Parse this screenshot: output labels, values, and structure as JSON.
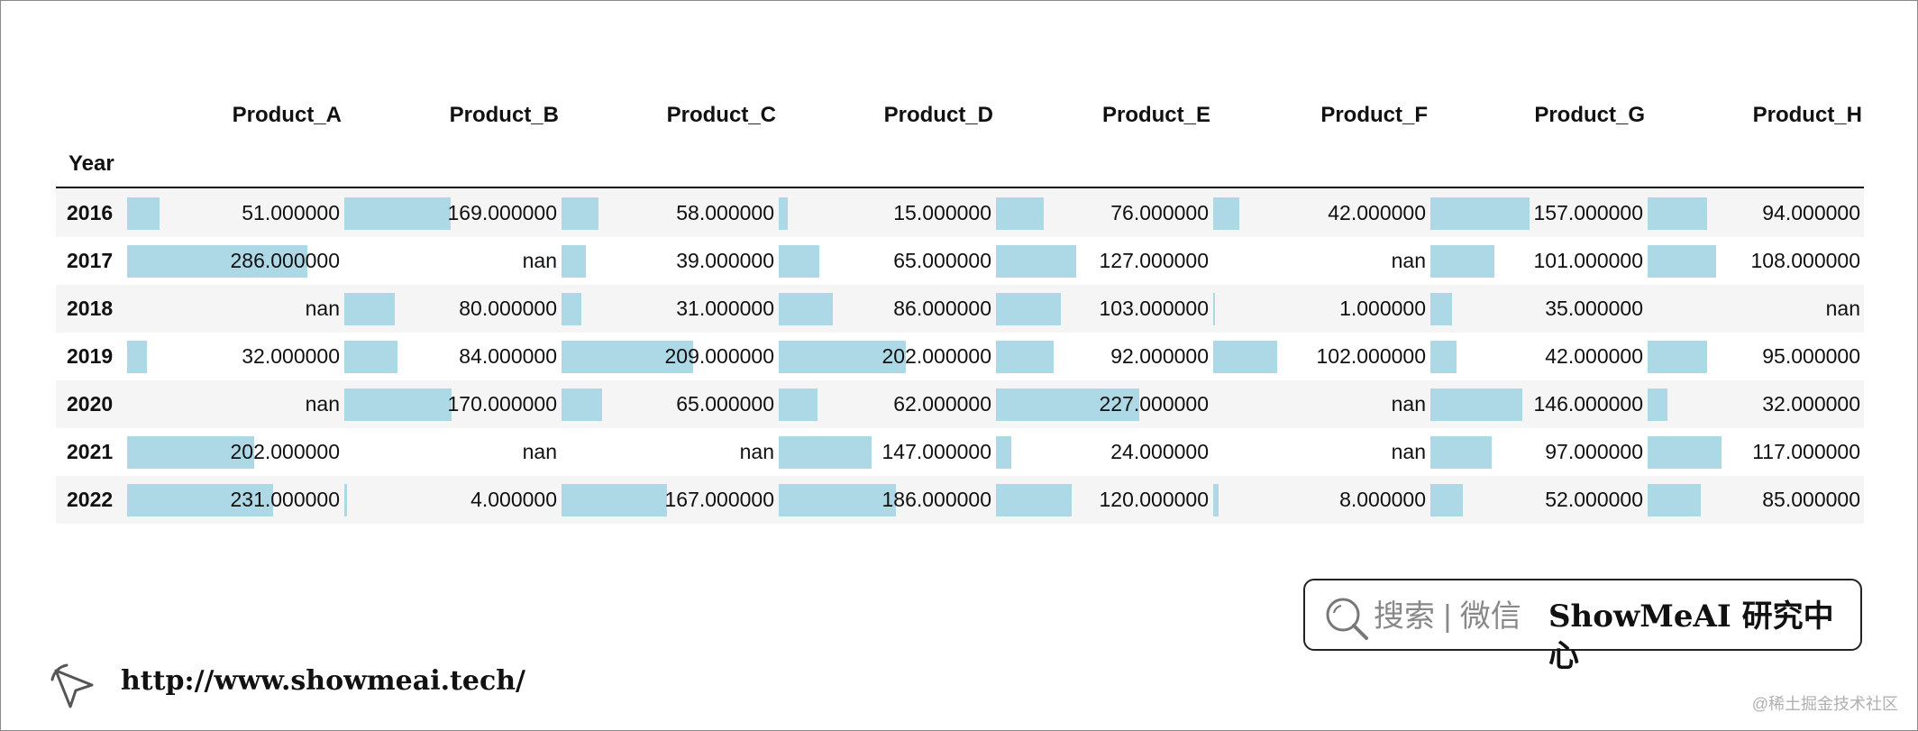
{
  "table": {
    "index_label": "Year",
    "columns": [
      "Product_A",
      "Product_B",
      "Product_C",
      "Product_D",
      "Product_E",
      "Product_F",
      "Product_G",
      "Product_H"
    ],
    "rows": [
      {
        "year": "2016",
        "cells": [
          {
            "text": "51.000000",
            "v": 51
          },
          {
            "text": "169.000000",
            "v": 169
          },
          {
            "text": "58.000000",
            "v": 58
          },
          {
            "text": "15.000000",
            "v": 15
          },
          {
            "text": "76.000000",
            "v": 76
          },
          {
            "text": "42.000000",
            "v": 42
          },
          {
            "text": "157.000000",
            "v": 157
          },
          {
            "text": "94.000000",
            "v": 94
          }
        ]
      },
      {
        "year": "2017",
        "cells": [
          {
            "text": "286.000000",
            "v": 286
          },
          {
            "text": "nan",
            "v": null
          },
          {
            "text": "39.000000",
            "v": 39
          },
          {
            "text": "65.000000",
            "v": 65
          },
          {
            "text": "127.000000",
            "v": 127
          },
          {
            "text": "nan",
            "v": null
          },
          {
            "text": "101.000000",
            "v": 101
          },
          {
            "text": "108.000000",
            "v": 108
          }
        ]
      },
      {
        "year": "2018",
        "cells": [
          {
            "text": "nan",
            "v": null
          },
          {
            "text": "80.000000",
            "v": 80
          },
          {
            "text": "31.000000",
            "v": 31
          },
          {
            "text": "86.000000",
            "v": 86
          },
          {
            "text": "103.000000",
            "v": 103
          },
          {
            "text": "1.000000",
            "v": 1
          },
          {
            "text": "35.000000",
            "v": 35
          },
          {
            "text": "nan",
            "v": null
          }
        ]
      },
      {
        "year": "2019",
        "cells": [
          {
            "text": "32.000000",
            "v": 32
          },
          {
            "text": "84.000000",
            "v": 84
          },
          {
            "text": "209.000000",
            "v": 209
          },
          {
            "text": "202.000000",
            "v": 202
          },
          {
            "text": "92.000000",
            "v": 92
          },
          {
            "text": "102.000000",
            "v": 102
          },
          {
            "text": "42.000000",
            "v": 42
          },
          {
            "text": "95.000000",
            "v": 95
          }
        ]
      },
      {
        "year": "2020",
        "cells": [
          {
            "text": "nan",
            "v": null
          },
          {
            "text": "170.000000",
            "v": 170
          },
          {
            "text": "65.000000",
            "v": 65
          },
          {
            "text": "62.000000",
            "v": 62
          },
          {
            "text": "227.000000",
            "v": 227
          },
          {
            "text": "nan",
            "v": null
          },
          {
            "text": "146.000000",
            "v": 146
          },
          {
            "text": "32.000000",
            "v": 32
          }
        ]
      },
      {
        "year": "2021",
        "cells": [
          {
            "text": "202.000000",
            "v": 202
          },
          {
            "text": "nan",
            "v": null
          },
          {
            "text": "nan",
            "v": null
          },
          {
            "text": "147.000000",
            "v": 147
          },
          {
            "text": "24.000000",
            "v": 24
          },
          {
            "text": "nan",
            "v": null
          },
          {
            "text": "97.000000",
            "v": 97
          },
          {
            "text": "117.000000",
            "v": 117
          }
        ]
      },
      {
        "year": "2022",
        "cells": [
          {
            "text": "231.000000",
            "v": 231
          },
          {
            "text": "4.000000",
            "v": 4
          },
          {
            "text": "167.000000",
            "v": 167
          },
          {
            "text": "186.000000",
            "v": 186
          },
          {
            "text": "120.000000",
            "v": 120
          },
          {
            "text": "8.000000",
            "v": 8
          },
          {
            "text": "52.000000",
            "v": 52
          },
          {
            "text": "85.000000",
            "v": 85
          }
        ]
      }
    ],
    "bar_color": "#add8e6",
    "stripe_color": "#f5f5f5"
  },
  "badge": {
    "search_text": "搜索 | 微信",
    "brand_text": "ShowMeAI 研究中心",
    "icon": "search-icon"
  },
  "footer": {
    "url": "http://www.showmeai.tech/",
    "icon": "cursor-arrow-icon",
    "watermark": "@稀土掘金技术社区"
  }
}
